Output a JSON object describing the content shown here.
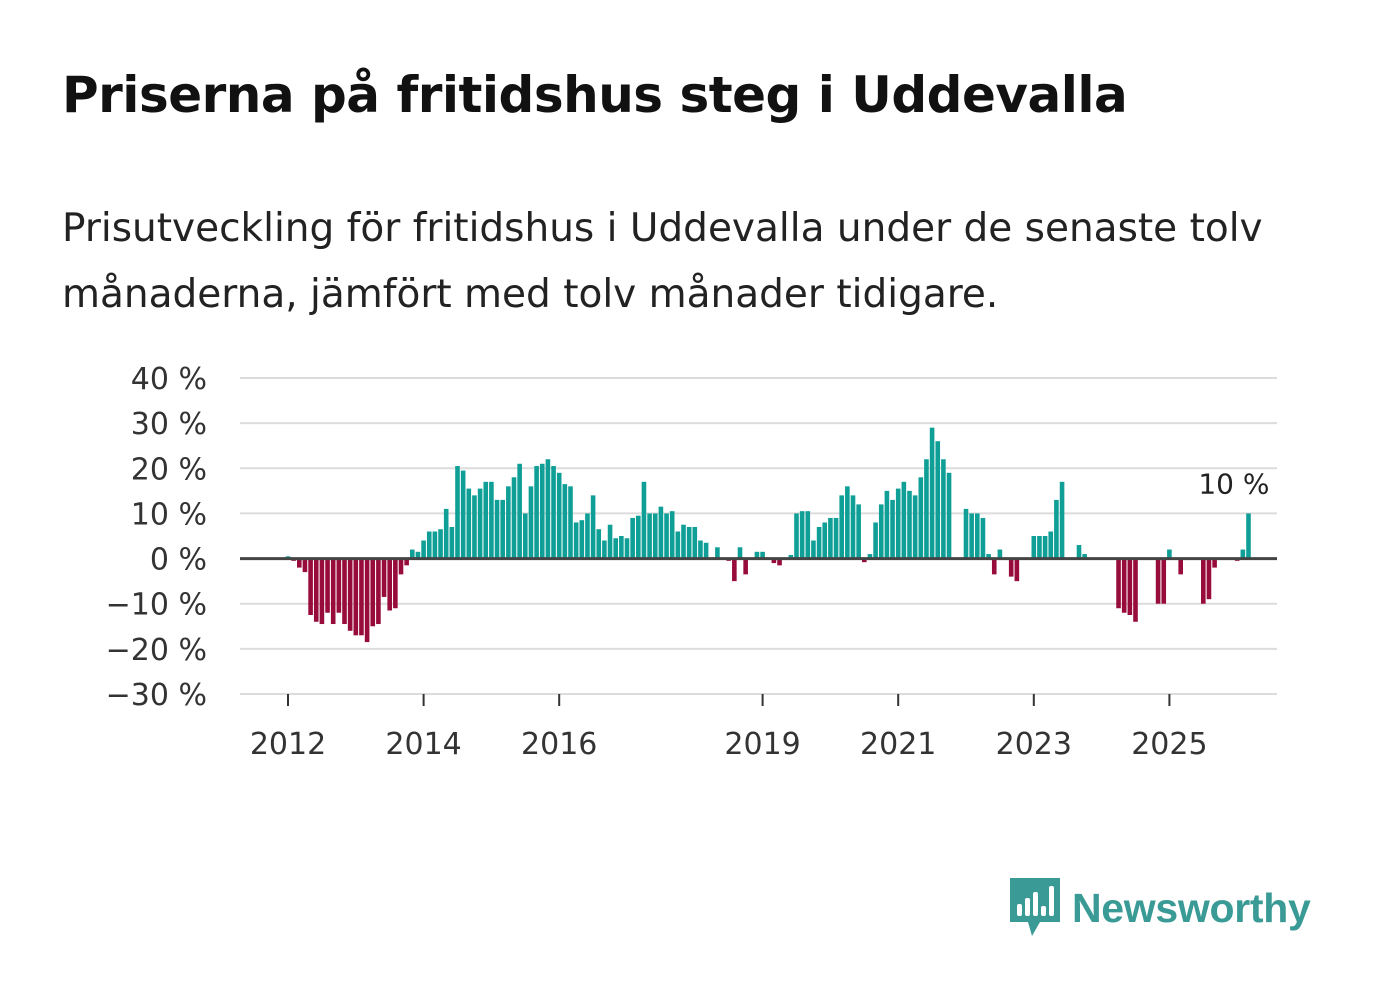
{
  "title": "Priserna på fritidshus steg i Uddevalla",
  "subtitle": "Prisutveckling för fritidshus i Uddevalla under de senaste tolv månaderna, jämfört med tolv månader tidigare.",
  "brand": {
    "name": "Newsworthy",
    "icon": "newsworthy-logo-icon"
  },
  "colors": {
    "positive": "#0f9f97",
    "negative": "#980c3c",
    "grid": "#dcdcdc",
    "zero": "#444444",
    "brand": "#3a9a95"
  },
  "chart_data": {
    "type": "bar",
    "title": "Priserna på fritidshus steg i Uddevalla",
    "xlabel": "",
    "ylabel": "",
    "ylim": [
      -30,
      40
    ],
    "yticks": [
      {
        "value": 40,
        "label": "40 %"
      },
      {
        "value": 30,
        "label": "30 %"
      },
      {
        "value": 20,
        "label": "20 %"
      },
      {
        "value": 10,
        "label": "10 %"
      },
      {
        "value": 0,
        "label": "0 %"
      },
      {
        "value": -10,
        "label": "−10 %"
      },
      {
        "value": -20,
        "label": "−20 %"
      },
      {
        "value": -30,
        "label": "−30 %"
      }
    ],
    "xticks": [
      {
        "month": 0,
        "label": "2012"
      },
      {
        "month": 24,
        "label": "2014"
      },
      {
        "month": 48,
        "label": "2016"
      },
      {
        "month": 84,
        "label": "2019"
      },
      {
        "month": 108,
        "label": "2021"
      },
      {
        "month": 132,
        "label": "2023"
      },
      {
        "month": 156,
        "label": "2025"
      }
    ],
    "x_start": "2012-01",
    "x_months_total": 174,
    "annotation": {
      "month": 166,
      "value": 10,
      "label": "10 %"
    },
    "series": [
      {
        "name": "Prisutveckling",
        "start_month": 0,
        "values": [
          0.5,
          -0.5,
          -2,
          -3,
          -12.5,
          -14,
          -14.5,
          -12,
          -14.5,
          -12,
          -14.5,
          -16,
          -17,
          -17,
          -18.5,
          -15,
          -14.5,
          -8.5,
          -11.5,
          -11,
          -3.5,
          -1.5,
          2,
          1.5,
          4,
          6,
          6,
          6.5,
          11,
          7,
          20.5,
          19.5,
          15.5,
          14,
          15.5,
          17,
          17,
          13,
          13,
          16,
          18,
          21,
          10,
          16,
          20.5,
          21,
          22,
          20.5,
          19,
          16.5,
          16,
          8,
          8.5,
          10,
          14,
          6.5,
          4,
          7.5,
          4.5,
          5,
          4.5,
          9,
          9.5,
          17,
          10,
          10,
          11.5,
          10,
          10.5,
          6,
          7.5,
          7,
          7,
          4,
          3.5,
          0,
          2.5,
          0,
          -0.5,
          -5,
          2.5,
          -3.5,
          0,
          1.5,
          1.5,
          0,
          -1,
          -1.5,
          0,
          0.8,
          10,
          10.5,
          10.5,
          4,
          7,
          8,
          9,
          9,
          14,
          16,
          14,
          12,
          -0.8,
          1,
          8,
          12,
          15,
          13,
          15.5,
          17,
          15,
          14,
          18,
          22,
          29,
          26,
          22,
          19,
          0,
          0,
          11,
          10,
          10,
          9,
          1,
          -3.5,
          2,
          0,
          -4,
          -5,
          0,
          0,
          5,
          5,
          5,
          6,
          13,
          17,
          0,
          0,
          3,
          1,
          0,
          0,
          0,
          0,
          0,
          -11,
          -12,
          -12.5,
          -14,
          0,
          0,
          0,
          -10,
          -10,
          2,
          0,
          -3.5,
          0,
          0,
          0,
          -10,
          -9,
          -2,
          0,
          0,
          0,
          -0.5,
          2,
          10
        ]
      }
    ]
  }
}
